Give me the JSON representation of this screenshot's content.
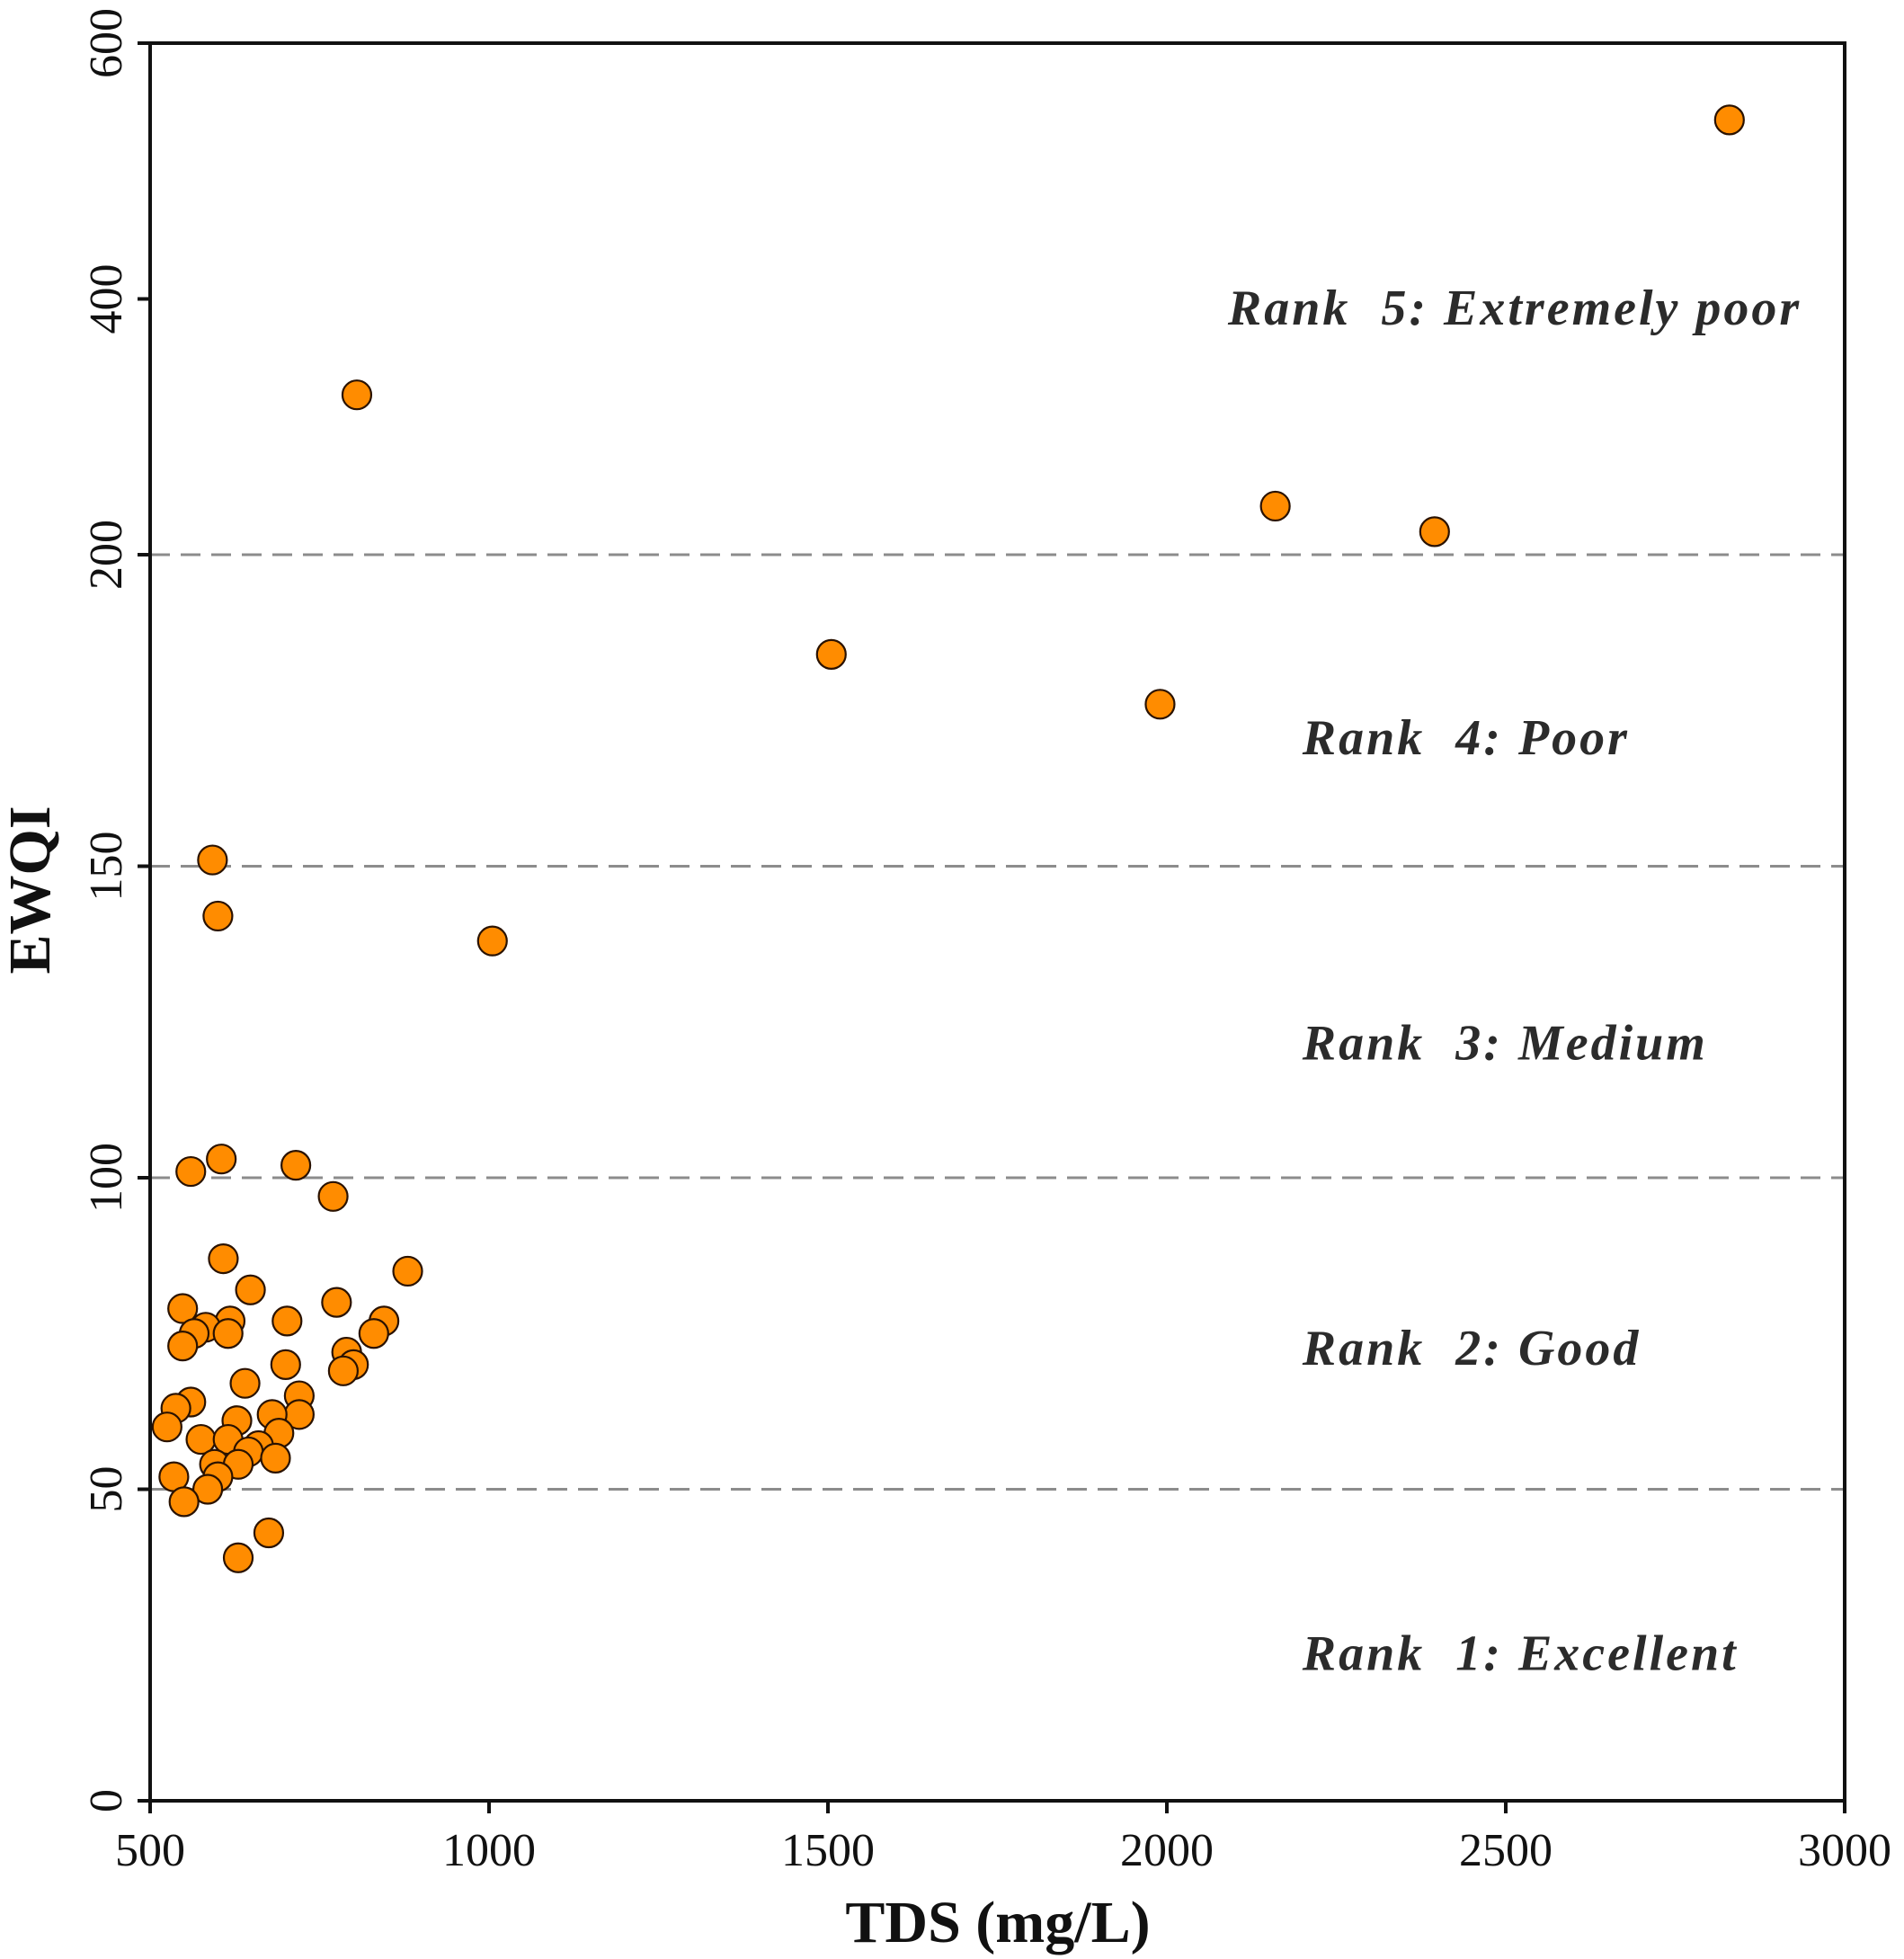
{
  "chart_data": {
    "type": "scatter",
    "title": "",
    "xlabel": "TDS (mg/L)",
    "ylabel": "EWQI",
    "xlim": [
      500,
      3000
    ],
    "ylim": [
      0,
      600
    ],
    "x_ticks": [
      {
        "value": 500,
        "label": "500"
      },
      {
        "value": 1000,
        "label": "1000"
      },
      {
        "value": 1500,
        "label": "1500"
      },
      {
        "value": 2000,
        "label": "2000"
      },
      {
        "value": 2500,
        "label": "2500"
      },
      {
        "value": 3000,
        "label": "3000"
      }
    ],
    "y_ticks": [
      {
        "value": 0,
        "label": "0"
      },
      {
        "value": 50,
        "label": "50"
      },
      {
        "value": 100,
        "label": "100"
      },
      {
        "value": 150,
        "label": "150"
      },
      {
        "value": 200,
        "label": "200"
      },
      {
        "value": 400,
        "label": "400"
      },
      {
        "value": 600,
        "label": "600"
      }
    ],
    "y_axis_note": "piecewise-linear: 0–200 on lower scale, 200–600 on compressed upper scale",
    "threshold_lines": [
      50,
      100,
      150,
      200
    ],
    "rank_labels": [
      {
        "text": "Rank  1: Excellent",
        "x": 2200,
        "y": 21
      },
      {
        "text": "Rank  2: Good",
        "x": 2200,
        "y": 70
      },
      {
        "text": "Rank  3: Medium",
        "x": 2200,
        "y": 119
      },
      {
        "text": "Rank  4: Poor",
        "x": 2200,
        "y": 168
      },
      {
        "text": "Rank  5: Extremely poor",
        "x": 2090,
        "y": 380
      }
    ],
    "point_color": "#ff8c00",
    "series": [
      {
        "name": "samples",
        "points": [
          [
            2830,
            540
          ],
          [
            805,
            325
          ],
          [
            2160,
            238
          ],
          [
            2395,
            218
          ],
          [
            1505,
            184
          ],
          [
            1990,
            176
          ],
          [
            592,
            151
          ],
          [
            600,
            142
          ],
          [
            1005,
            138
          ],
          [
            605,
            103
          ],
          [
            560,
            101
          ],
          [
            715,
            102
          ],
          [
            770,
            97
          ],
          [
            608,
            87
          ],
          [
            880,
            85
          ],
          [
            648,
            82
          ],
          [
            548,
            79
          ],
          [
            775,
            80
          ],
          [
            618,
            77
          ],
          [
            702,
            77
          ],
          [
            845,
            77
          ],
          [
            582,
            76
          ],
          [
            830,
            75
          ],
          [
            565,
            75
          ],
          [
            615,
            75
          ],
          [
            548,
            73
          ],
          [
            790,
            72
          ],
          [
            700,
            70
          ],
          [
            800,
            70
          ],
          [
            785,
            69
          ],
          [
            640,
            67
          ],
          [
            720,
            65
          ],
          [
            560,
            64
          ],
          [
            538,
            63
          ],
          [
            720,
            62
          ],
          [
            680,
            62
          ],
          [
            628,
            61
          ],
          [
            525,
            60
          ],
          [
            690,
            59
          ],
          [
            575,
            58
          ],
          [
            615,
            58
          ],
          [
            660,
            57
          ],
          [
            645,
            56
          ],
          [
            685,
            55
          ],
          [
            595,
            54
          ],
          [
            630,
            54
          ],
          [
            600,
            52
          ],
          [
            535,
            52
          ],
          [
            585,
            50
          ],
          [
            550,
            48
          ],
          [
            675,
            43
          ],
          [
            630,
            39
          ]
        ]
      }
    ]
  }
}
